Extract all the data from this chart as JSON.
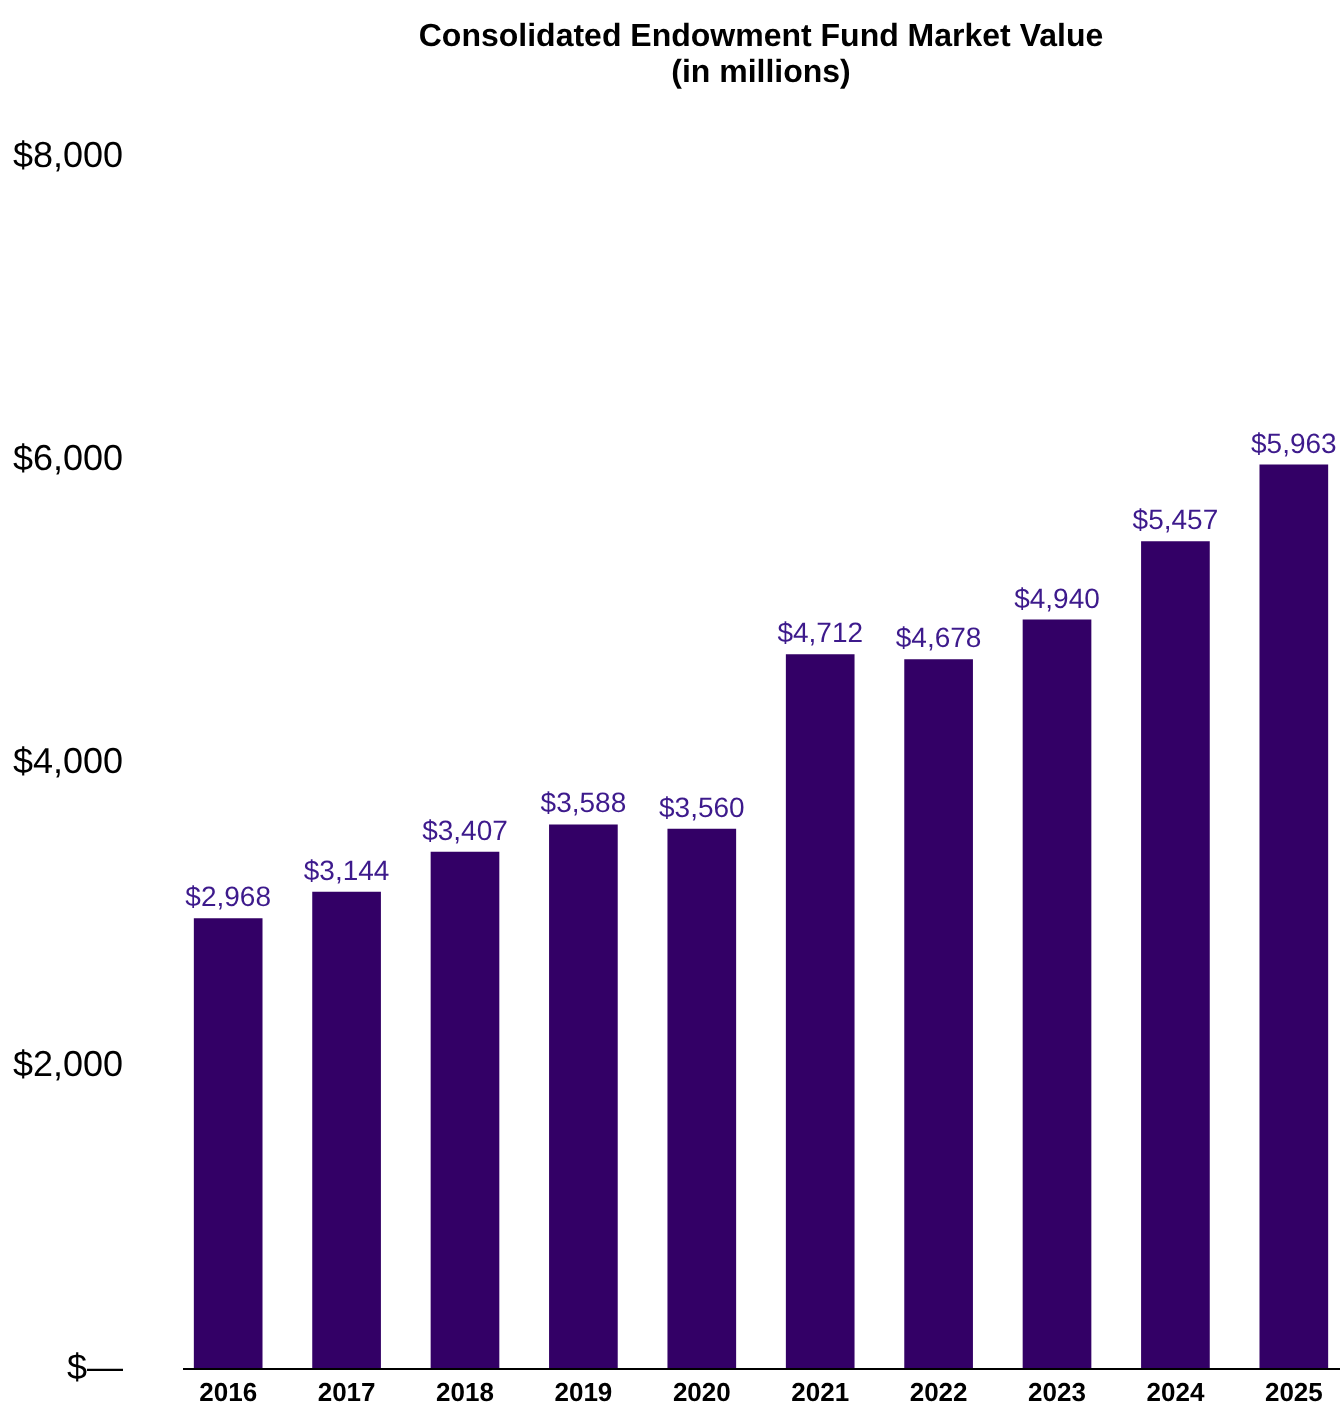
{
  "chart_data": {
    "type": "bar",
    "title": "Consolidated Endowment Fund Market Value\n(in millions)",
    "categories": [
      "2016",
      "2017",
      "2018",
      "2019",
      "2020",
      "2021",
      "2022",
      "2023",
      "2024",
      "2025"
    ],
    "values": [
      2968,
      3144,
      3407,
      3588,
      3560,
      4712,
      4678,
      4940,
      5457,
      5963
    ],
    "value_labels": [
      "$2,968",
      "$3,144",
      "$3,407",
      "$3,588",
      "$3,560",
      "$4,712",
      "$4,678",
      "$4,940",
      "$5,457",
      "$5,963"
    ],
    "color": "#330066",
    "ylim": [
      0,
      8000
    ],
    "yticks": [
      {
        "value": 0,
        "label": "$—"
      },
      {
        "value": 2000,
        "label": "$2,000"
      },
      {
        "value": 4000,
        "label": "$4,000"
      },
      {
        "value": 6000,
        "label": "$6,000"
      },
      {
        "value": 8000,
        "label": "$8,000"
      }
    ],
    "grid": false
  }
}
